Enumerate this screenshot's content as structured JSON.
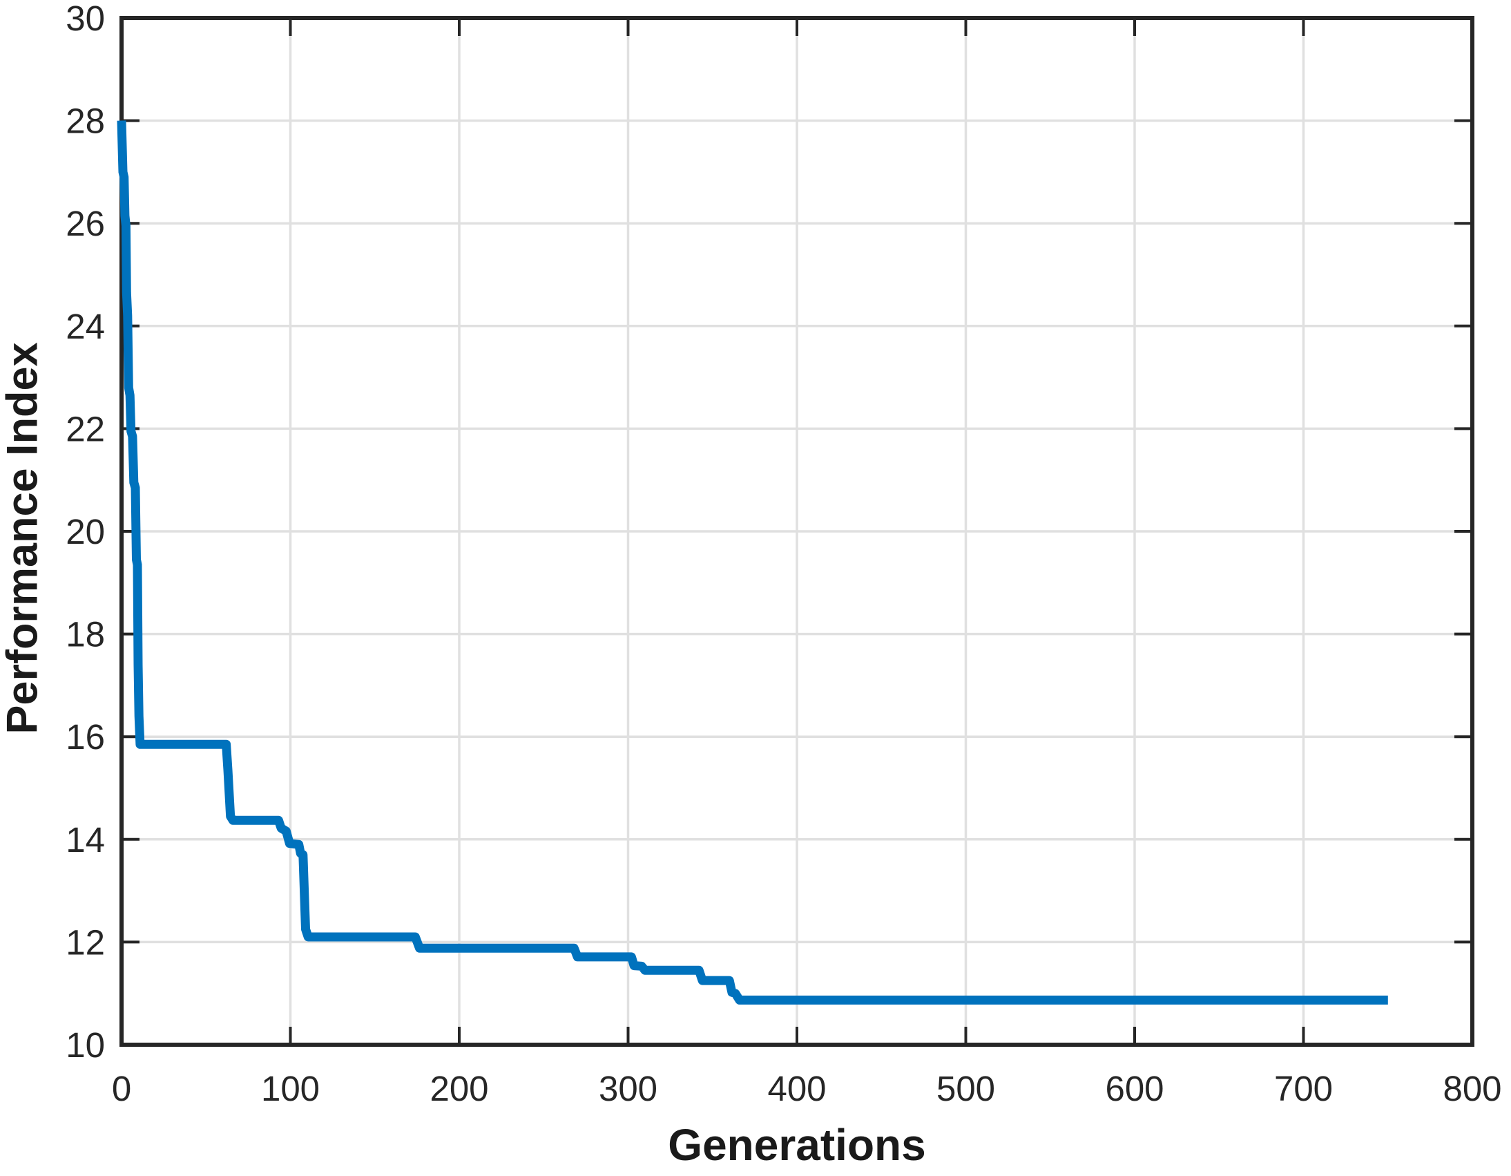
{
  "chart_data": {
    "type": "line",
    "title": "",
    "xlabel": "Generations",
    "ylabel": "Performance Index",
    "xlim": [
      0,
      800
    ],
    "ylim": [
      10,
      30
    ],
    "x_ticks": [
      0,
      100,
      200,
      300,
      400,
      500,
      600,
      700,
      800
    ],
    "x_tick_labels": [
      "0",
      "100",
      "200",
      "300",
      "400",
      "500",
      "600",
      "700",
      "800"
    ],
    "y_ticks": [
      10,
      12,
      14,
      16,
      18,
      20,
      22,
      24,
      26,
      28,
      30
    ],
    "y_tick_labels": [
      "10",
      "12",
      "14",
      "16",
      "18",
      "20",
      "22",
      "24",
      "26",
      "28",
      "30"
    ],
    "grid": true,
    "legend": null,
    "colors": {
      "line": "#0072BD",
      "axis": "#262626",
      "grid": "#e0e0e0",
      "tick_label": "#262626",
      "background": "#ffffff"
    },
    "series": [
      {
        "points": [
          [
            0,
            28
          ],
          [
            0.8,
            27.0
          ],
          [
            1.5,
            26.9
          ],
          [
            2,
            26.15
          ],
          [
            2.6,
            25.95
          ],
          [
            3,
            24.65
          ],
          [
            3.6,
            24.2
          ],
          [
            4.2,
            22.8
          ],
          [
            5,
            22.65
          ],
          [
            5.6,
            21.95
          ],
          [
            6.5,
            21.85
          ],
          [
            7.3,
            20.95
          ],
          [
            8.2,
            20.85
          ],
          [
            8.8,
            19.45
          ],
          [
            9.4,
            19.35
          ],
          [
            9.8,
            17.4
          ],
          [
            10.3,
            16.4
          ],
          [
            11,
            15.85
          ],
          [
            62,
            15.85
          ],
          [
            63,
            15.35
          ],
          [
            64.5,
            14.45
          ],
          [
            66,
            14.37
          ],
          [
            93,
            14.37
          ],
          [
            94.5,
            14.22
          ],
          [
            97.5,
            14.16
          ],
          [
            99.5,
            13.92
          ],
          [
            105,
            13.9
          ],
          [
            106,
            13.73
          ],
          [
            107.5,
            13.7
          ],
          [
            109,
            12.25
          ],
          [
            110.5,
            12.1
          ],
          [
            174,
            12.1
          ],
          [
            176.5,
            11.88
          ],
          [
            268,
            11.88
          ],
          [
            270,
            11.71
          ],
          [
            302,
            11.71
          ],
          [
            303.5,
            11.54
          ],
          [
            308,
            11.53
          ],
          [
            310,
            11.45
          ],
          [
            342,
            11.45
          ],
          [
            344,
            11.25
          ],
          [
            360,
            11.25
          ],
          [
            361.5,
            11.02
          ],
          [
            363.5,
            11.0
          ],
          [
            366,
            10.87
          ],
          [
            750,
            10.87
          ]
        ]
      }
    ]
  }
}
